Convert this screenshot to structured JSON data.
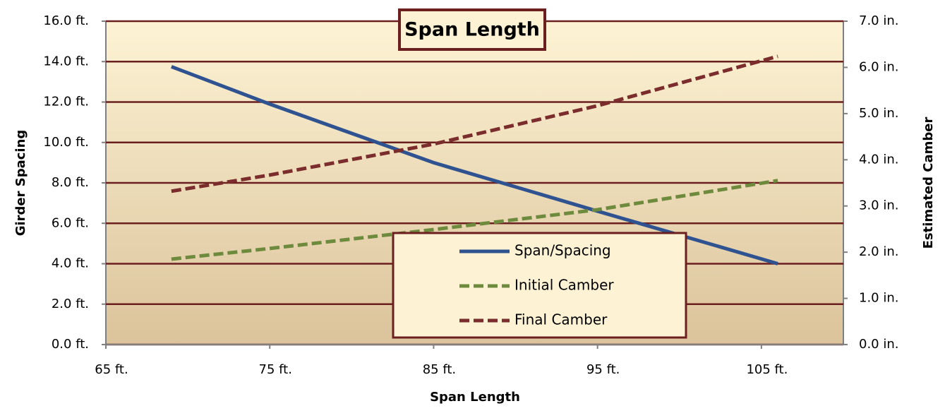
{
  "chart_data": {
    "type": "line",
    "title": "Span Length",
    "xlabel": "Span Length",
    "ylabel": "Girder Spacing",
    "y2label": "Estimated Camber",
    "x": [
      69,
      75,
      85,
      95,
      106
    ],
    "series": [
      {
        "name": "Span/Spacing",
        "color": "#2f5290",
        "dash": "solid",
        "values": [
          13.75,
          11.9,
          9.0,
          6.6,
          4.0
        ]
      },
      {
        "name": "Initial Camber",
        "color": "#6e8b3d",
        "dash": "dashed",
        "axis": "y2",
        "values": [
          1.85,
          2.08,
          2.49,
          2.92,
          3.55
        ]
      },
      {
        "name": "Final Camber",
        "color": "#7b2c2c",
        "dash": "dashed",
        "axis": "y2",
        "values": [
          3.32,
          3.67,
          4.34,
          5.17,
          6.24
        ]
      }
    ],
    "xlim": [
      65,
      110
    ],
    "xticks": [
      {
        "value": 65,
        "label": "65 ft."
      },
      {
        "value": 75,
        "label": "75 ft."
      },
      {
        "value": 85,
        "label": "85 ft."
      },
      {
        "value": 95,
        "label": "95 ft."
      },
      {
        "value": 105,
        "label": "105 ft."
      }
    ],
    "ylim": [
      0,
      16
    ],
    "yticks": [
      {
        "value": 0,
        "label": "0.0 ft."
      },
      {
        "value": 2,
        "label": "2.0 ft."
      },
      {
        "value": 4,
        "label": "4.0 ft."
      },
      {
        "value": 6,
        "label": "6.0 ft."
      },
      {
        "value": 8,
        "label": "8.0 ft."
      },
      {
        "value": 10,
        "label": "10.0 ft."
      },
      {
        "value": 12,
        "label": "12.0 ft."
      },
      {
        "value": 14,
        "label": "14.0 ft."
      },
      {
        "value": 16,
        "label": "16.0 ft."
      }
    ],
    "y2lim": [
      0,
      7
    ],
    "y2ticks": [
      {
        "value": 0,
        "label": "0.0 in."
      },
      {
        "value": 1,
        "label": "1.0 in."
      },
      {
        "value": 2,
        "label": "2.0 in."
      },
      {
        "value": 3,
        "label": "3.0 in."
      },
      {
        "value": 4,
        "label": "4.0 in."
      },
      {
        "value": 5,
        "label": "5.0 in."
      },
      {
        "value": 6,
        "label": "6.0 in."
      },
      {
        "value": 7,
        "label": "7.0 in."
      }
    ],
    "grid": true
  }
}
